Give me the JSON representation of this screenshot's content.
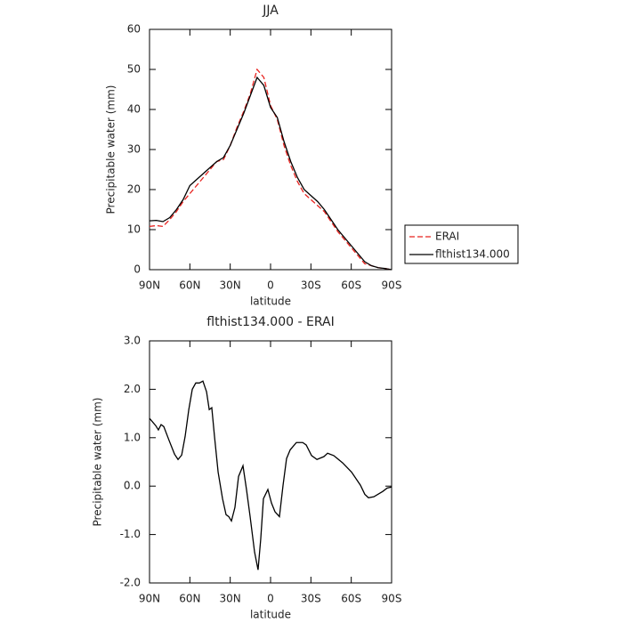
{
  "chart_data": [
    {
      "type": "line",
      "title": "JJA",
      "xlabel": "latitude",
      "ylabel": "Precipitable water (mm)",
      "x": [
        90,
        85,
        80,
        75,
        70,
        65,
        60,
        55,
        50,
        45,
        40,
        35,
        30,
        25,
        20,
        15,
        10,
        5,
        0,
        -5,
        -10,
        -15,
        -20,
        -25,
        -30,
        -35,
        -40,
        -45,
        -50,
        -55,
        -60,
        -65,
        -70,
        -75,
        -80,
        -85,
        -90
      ],
      "xlim": [
        90,
        -90
      ],
      "xticks": [
        {
          "value": 90,
          "label": "90N"
        },
        {
          "value": 60,
          "label": "60N"
        },
        {
          "value": 30,
          "label": "30N"
        },
        0,
        {
          "value": -30,
          "label": "30S"
        },
        {
          "value": -60,
          "label": "60S"
        },
        {
          "value": -90,
          "label": "90S"
        }
      ],
      "ylim": [
        0,
        60
      ],
      "yticks": [
        0,
        10,
        20,
        30,
        40,
        50,
        60
      ],
      "legend": "right",
      "series": [
        {
          "name": "ERAI",
          "color": "#e8231f",
          "dash": true,
          "values": [
            10.8,
            11,
            10.8,
            12.5,
            14.5,
            17,
            19,
            21,
            23,
            25,
            27,
            27.5,
            31,
            35.5,
            39.5,
            44,
            50,
            48,
            41,
            37.5,
            31,
            26,
            22,
            19,
            17.5,
            16,
            14.5,
            12,
            9.5,
            7.5,
            5.5,
            3.5,
            1.5,
            1,
            0.5,
            0.3,
            0
          ]
        },
        {
          "name": "flthist134.000",
          "color": "#000000",
          "dash": false,
          "values": [
            12.2,
            12.3,
            12,
            13,
            15,
            17.5,
            21,
            22.5,
            24,
            25.5,
            27,
            28,
            31,
            35,
            39,
            43.5,
            48,
            46,
            40.5,
            38,
            32,
            27,
            23,
            20,
            18.5,
            17,
            15,
            12.5,
            10,
            8,
            6,
            4,
            2,
            1,
            0.5,
            0.3,
            0
          ]
        }
      ]
    },
    {
      "type": "line",
      "title": "flthist134.000 - ERAI",
      "xlabel": "latitude",
      "ylabel": "Precipitable water (mm)",
      "x": [
        90,
        85.4,
        83.4,
        81.4,
        79.4,
        75.4,
        71.4,
        68.8,
        66.1,
        63.5,
        60.8,
        58.2,
        55.6,
        52.9,
        50.3,
        47.6,
        45.6,
        43.7,
        41.7,
        39,
        35.7,
        33.1,
        31.1,
        29.1,
        26.5,
        23.8,
        20.5,
        17.9,
        15.2,
        11.9,
        9.3,
        7.3,
        5.3,
        2,
        -0.7,
        -3.3,
        -6.6,
        -9.3,
        -11.9,
        -14.6,
        -19.2,
        -23.9,
        -26.5,
        -30.5,
        -34.5,
        -39.7,
        -42.4,
        -47,
        -53.6,
        -60.2,
        -66.8,
        -70.1,
        -72.8,
        -76.8,
        -83.4,
        -86.7,
        -90
      ],
      "xlim": [
        90,
        -90
      ],
      "xticks": [
        {
          "value": 90,
          "label": "90N"
        },
        {
          "value": 60,
          "label": "60N"
        },
        {
          "value": 30,
          "label": "30N"
        },
        0,
        {
          "value": -30,
          "label": "30S"
        },
        {
          "value": -60,
          "label": "60S"
        },
        {
          "value": -90,
          "label": "90S"
        }
      ],
      "ylim": [
        -2,
        3
      ],
      "yticks": [
        {
          "value": -2,
          "label": "-2.0"
        },
        {
          "value": -1,
          "label": "-1.0"
        },
        {
          "value": 0,
          "label": "0.0"
        },
        {
          "value": 1,
          "label": "1.0"
        },
        {
          "value": 2,
          "label": "2.0"
        },
        {
          "value": 3,
          "label": "3.0"
        }
      ],
      "color": "#000000",
      "values": [
        1.4,
        1.25,
        1.16,
        1.27,
        1.23,
        0.94,
        0.66,
        0.55,
        0.64,
        1.03,
        1.58,
        2,
        2.13,
        2.13,
        2.17,
        1.95,
        1.58,
        1.62,
        1.03,
        0.29,
        -0.26,
        -0.59,
        -0.63,
        -0.72,
        -0.44,
        0.2,
        0.42,
        -0.07,
        -0.63,
        -1.36,
        -1.73,
        -1.09,
        -0.26,
        -0.07,
        -0.35,
        -0.53,
        -0.63,
        0.02,
        0.57,
        0.75,
        0.9,
        0.9,
        0.85,
        0.63,
        0.55,
        0.61,
        0.68,
        0.63,
        0.48,
        0.29,
        0.02,
        -0.17,
        -0.24,
        -0.22,
        -0.11,
        -0.04,
        -0.02
      ]
    }
  ]
}
